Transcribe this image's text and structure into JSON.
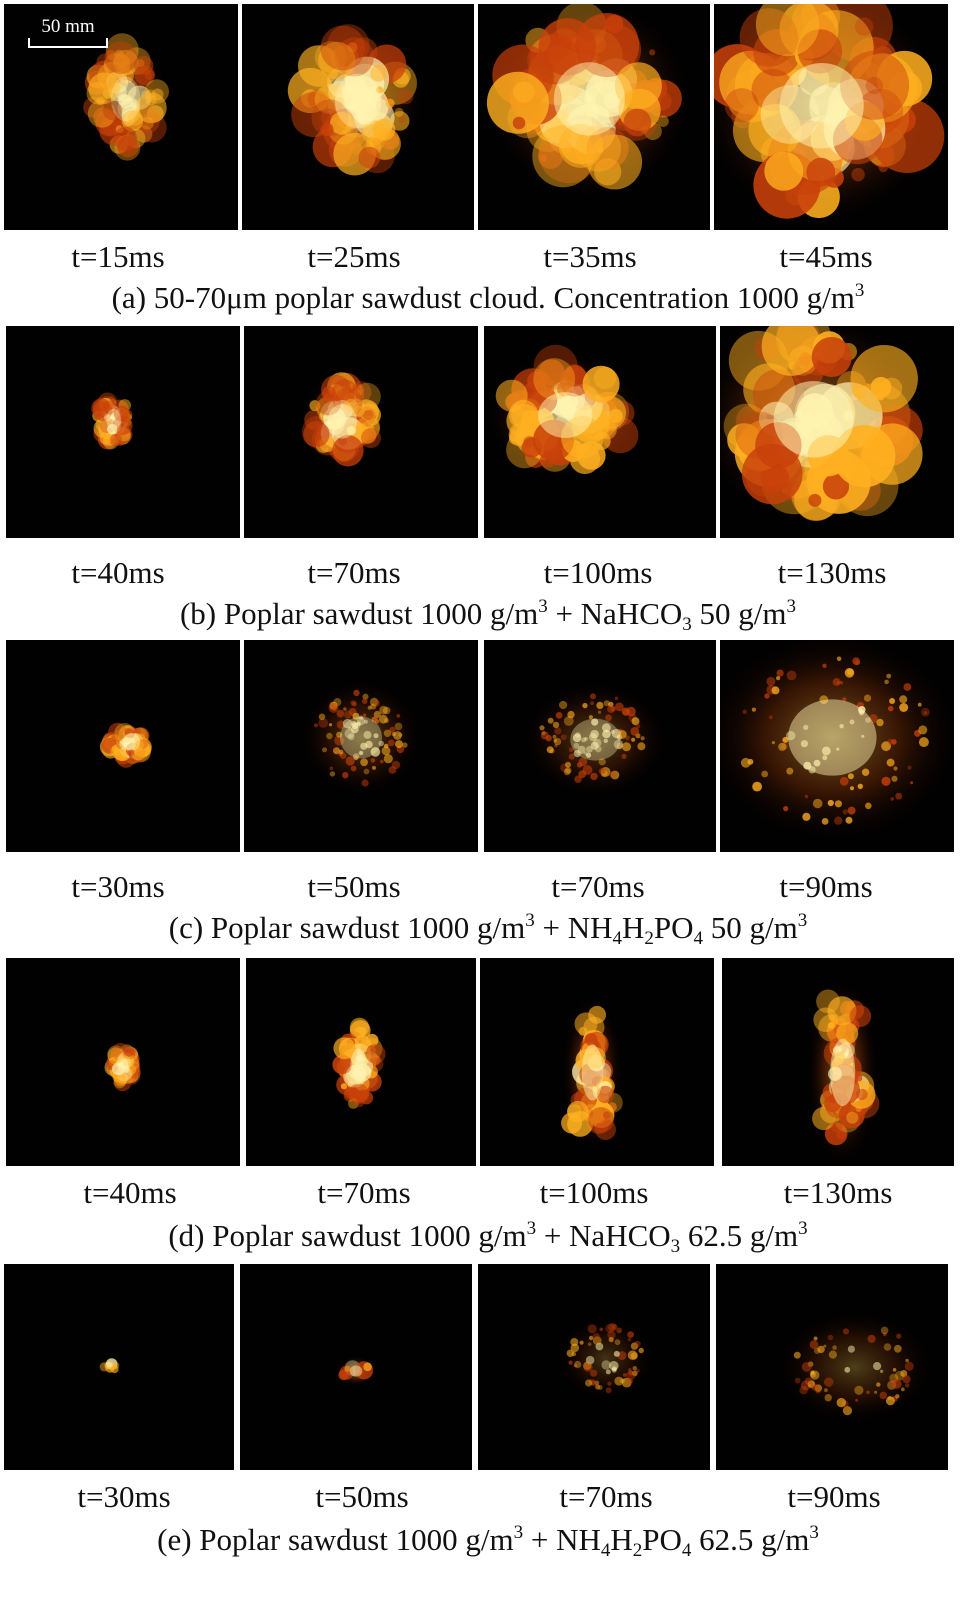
{
  "scale_bar": {
    "label": "50 mm"
  },
  "panels": [
    {
      "id": "a",
      "caption": [
        "(a) 50-70μm poplar sawdust cloud. Concentration 1000 g/m",
        {
          "sup": "3"
        }
      ],
      "frames": [
        {
          "time": "t=15ms"
        },
        {
          "time": "t=25ms"
        },
        {
          "time": "t=35ms"
        },
        {
          "time": "t=45ms"
        }
      ]
    },
    {
      "id": "b",
      "caption": [
        "(b) Poplar sawdust 1000 g/m",
        {
          "sup": "3"
        },
        " + NaHCO",
        {
          "sub": "3"
        },
        " 50 g/m",
        {
          "sup": "3"
        }
      ],
      "frames": [
        {
          "time": "t=40ms"
        },
        {
          "time": "t=70ms"
        },
        {
          "time": "t=100ms"
        },
        {
          "time": "t=130ms"
        }
      ]
    },
    {
      "id": "c",
      "caption": [
        "(c) Poplar sawdust 1000 g/m",
        {
          "sup": "3"
        },
        " + NH",
        {
          "sub": "4"
        },
        "H",
        {
          "sub": "2"
        },
        "PO",
        {
          "sub": "4"
        },
        " 50 g/m",
        {
          "sup": "3"
        }
      ],
      "frames": [
        {
          "time": "t=30ms"
        },
        {
          "time": "t=50ms"
        },
        {
          "time": "t=70ms"
        },
        {
          "time": "t=90ms"
        }
      ]
    },
    {
      "id": "d",
      "caption": [
        "(d) Poplar sawdust 1000 g/m",
        {
          "sup": "3"
        },
        " + NaHCO",
        {
          "sub": "3"
        },
        " 62.5 g/m",
        {
          "sup": "3"
        }
      ],
      "frames": [
        {
          "time": "t=40ms"
        },
        {
          "time": "t=70ms"
        },
        {
          "time": "t=100ms"
        },
        {
          "time": "t=130ms"
        }
      ]
    },
    {
      "id": "e",
      "caption": [
        "(e) Poplar sawdust 1000 g/m",
        {
          "sup": "3"
        },
        " + NH",
        {
          "sub": "4"
        },
        "H",
        {
          "sub": "2"
        },
        "PO",
        {
          "sub": "4"
        },
        " 62.5 g/m",
        {
          "sup": "3"
        }
      ],
      "frames": [
        {
          "time": "t=30ms"
        },
        {
          "time": "t=50ms"
        },
        {
          "time": "t=70ms"
        },
        {
          "time": "t=90ms"
        }
      ]
    }
  ],
  "colors": {
    "flame_core": "#fff3b0",
    "flame_mid": "#ffb020",
    "flame_edge": "#c8400a",
    "background": "#020101"
  }
}
